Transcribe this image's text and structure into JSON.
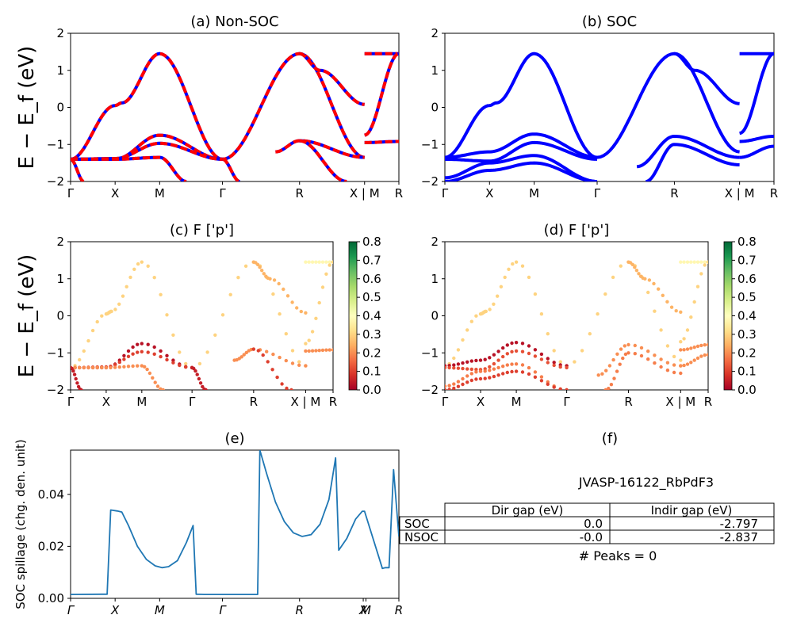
{
  "chart_data": [
    {
      "id": "a",
      "type": "line",
      "title": "(a) Non-SOC",
      "ylabel": "E − E_f (eV)",
      "xlabel": "",
      "ylim": [
        -2,
        2
      ],
      "yticks": [
        "−2",
        "−1",
        "0",
        "1",
        "2"
      ],
      "kpoint_labels": [
        "Γ",
        "X",
        "M",
        "Γ",
        "R",
        "X | M",
        "R"
      ],
      "kpoint_positions": [
        0,
        1,
        2,
        3.41,
        5.14,
        6.6,
        7.37
      ],
      "colors": {
        "dashed_red": "#ff0000",
        "solid_blue": "#0000ff"
      },
      "series": [
        {
          "x": [
            0,
            1,
            1.15,
            2,
            3.41,
            5.14,
            6.6
          ],
          "y": [
            -1.4,
            0.05,
            0.12,
            1.45,
            -1.4,
            1.45,
            -1.35
          ]
        },
        {
          "x": [
            0,
            1,
            2,
            3.41
          ],
          "y": [
            -1.4,
            -1.4,
            -0.75,
            -1.4
          ]
        },
        {
          "x": [
            0,
            1,
            2,
            3.41
          ],
          "y": [
            -1.4,
            -1.38,
            -0.97,
            -1.4
          ]
        },
        {
          "x": [
            0,
            1,
            2,
            2.6
          ],
          "y": [
            -1.4,
            -1.4,
            -1.35,
            -2.0
          ]
        },
        {
          "x": [
            0,
            0.3
          ],
          "y": [
            -1.4,
            -2.0
          ]
        },
        {
          "x": [
            3.41,
            3.8
          ],
          "y": [
            -1.4,
            -2.0
          ]
        },
        {
          "x": [
            4.6,
            5.14,
            6.6
          ],
          "y": [
            -1.2,
            -0.9,
            -1.35
          ]
        },
        {
          "x": [
            5.14,
            5.6,
            6.6
          ],
          "y": [
            1.45,
            1.0,
            0.08
          ]
        },
        {
          "x": [
            5.14,
            6.2
          ],
          "y": [
            -0.9,
            -2.0
          ]
        },
        {
          "x": [
            6.6,
            7.37
          ],
          "y": [
            1.45,
            1.45
          ]
        },
        {
          "x": [
            6.6,
            7.37
          ],
          "y": [
            -0.75,
            1.45
          ]
        },
        {
          "x": [
            6.6,
            7.37
          ],
          "y": [
            -0.95,
            -0.92
          ]
        }
      ]
    },
    {
      "id": "b",
      "type": "line",
      "title": "(b) SOC",
      "ylabel": "",
      "xlabel": "",
      "ylim": [
        -2,
        2
      ],
      "yticks": [
        "−2",
        "−1",
        "0",
        "1",
        "2"
      ],
      "kpoint_labels": [
        "Γ",
        "X",
        "M",
        "Γ",
        "R",
        "X | M",
        "R"
      ],
      "kpoint_positions": [
        0,
        1,
        2,
        3.41,
        5.14,
        6.6,
        7.37
      ],
      "colors": {
        "solid_blue": "#0000ff"
      },
      "series": [
        {
          "x": [
            0,
            1,
            1.15,
            2,
            3.41,
            5.14,
            6.6
          ],
          "y": [
            -1.35,
            0.05,
            0.12,
            1.45,
            -1.35,
            1.45,
            -1.2
          ]
        },
        {
          "x": [
            0,
            1,
            2,
            3.41
          ],
          "y": [
            -1.35,
            -1.2,
            -0.72,
            -1.35
          ]
        },
        {
          "x": [
            0,
            1,
            2,
            3.41
          ],
          "y": [
            -1.4,
            -1.45,
            -0.95,
            -1.4
          ]
        },
        {
          "x": [
            0,
            1,
            2,
            3.41
          ],
          "y": [
            -1.9,
            -1.5,
            -1.3,
            -2.0
          ]
        },
        {
          "x": [
            0,
            1,
            2,
            3.41
          ],
          "y": [
            -2.0,
            -1.7,
            -1.5,
            -2.0
          ]
        },
        {
          "x": [
            5.14,
            5.6,
            6.6
          ],
          "y": [
            1.45,
            1.0,
            0.1
          ]
        },
        {
          "x": [
            4.3,
            5.14,
            6.6
          ],
          "y": [
            -1.6,
            -0.78,
            -1.35
          ]
        },
        {
          "x": [
            4.5,
            5.14,
            6.6
          ],
          "y": [
            -2.0,
            -1.0,
            -1.55
          ]
        },
        {
          "x": [
            6.6,
            7.37
          ],
          "y": [
            1.45,
            1.45
          ]
        },
        {
          "x": [
            6.6,
            7.37
          ],
          "y": [
            -0.7,
            1.45
          ]
        },
        {
          "x": [
            6.6,
            7.37
          ],
          "y": [
            -0.92,
            -0.78
          ]
        },
        {
          "x": [
            6.6,
            7.37
          ],
          "y": [
            -1.35,
            -1.05
          ]
        }
      ]
    },
    {
      "id": "c",
      "type": "scatter",
      "title": "(c)  F ['p']",
      "ylabel": "E − E_f (eV)",
      "xlabel": "",
      "ylim": [
        -2,
        2
      ],
      "yticks": [
        "−2",
        "−1",
        "0",
        "1",
        "2"
      ],
      "kpoint_labels": [
        "Γ",
        "X",
        "M",
        "Γ",
        "R",
        "X | M",
        "R"
      ],
      "kpoint_positions": [
        0,
        1,
        2,
        3.41,
        5.14,
        6.6,
        7.37
      ],
      "colorbar": {
        "min": 0.0,
        "max": 0.8,
        "ticks": [
          "0.0",
          "0.1",
          "0.2",
          "0.3",
          "0.4",
          "0.5",
          "0.6",
          "0.7",
          "0.8"
        ],
        "colormap": "RdYlGn"
      },
      "series": [
        {
          "x": [
            0,
            1,
            1.15,
            2,
            3.41,
            5.14,
            6.6
          ],
          "y": [
            -1.4,
            0.05,
            0.12,
            1.45,
            -1.4,
            1.45,
            -1.35
          ],
          "c": 0.3
        },
        {
          "x": [
            0,
            1,
            2,
            3.41
          ],
          "y": [
            -1.4,
            -1.4,
            -0.75,
            -1.4
          ],
          "c": 0.03
        },
        {
          "x": [
            0,
            1,
            2,
            3.41
          ],
          "y": [
            -1.4,
            -1.38,
            -0.97,
            -1.4
          ],
          "c": 0.1
        },
        {
          "x": [
            0,
            1,
            2,
            2.6
          ],
          "y": [
            -1.4,
            -1.4,
            -1.35,
            -2.0
          ],
          "c": 0.2
        },
        {
          "x": [
            0,
            0.3
          ],
          "y": [
            -1.4,
            -2.0
          ],
          "c": 0.05
        },
        {
          "x": [
            3.41,
            3.8
          ],
          "y": [
            -1.4,
            -2.0
          ],
          "c": 0.05
        },
        {
          "x": [
            4.6,
            5.14,
            6.6
          ],
          "y": [
            -1.2,
            -0.9,
            -1.35
          ],
          "c": 0.2
        },
        {
          "x": [
            5.14,
            5.6,
            6.6
          ],
          "y": [
            1.45,
            1.0,
            0.08
          ],
          "c": 0.25
        },
        {
          "x": [
            5.14,
            6.2
          ],
          "y": [
            -0.9,
            -2.0
          ],
          "c": 0.1
        },
        {
          "x": [
            6.6,
            7.37
          ],
          "y": [
            1.45,
            1.45
          ],
          "c": 0.38
        },
        {
          "x": [
            6.6,
            7.37
          ],
          "y": [
            -0.75,
            1.45
          ],
          "c": 0.3
        },
        {
          "x": [
            6.6,
            7.37
          ],
          "y": [
            -0.95,
            -0.92
          ],
          "c": 0.2
        }
      ]
    },
    {
      "id": "d",
      "type": "scatter",
      "title": "(d) F ['p']",
      "ylabel": "",
      "xlabel": "",
      "ylim": [
        -2,
        2
      ],
      "yticks": [
        "−2",
        "−1",
        "0",
        "1",
        "2"
      ],
      "kpoint_labels": [
        "Γ",
        "X",
        "M",
        "Γ",
        "R",
        "X | M",
        "R"
      ],
      "kpoint_positions": [
        0,
        1,
        2,
        3.41,
        5.14,
        6.6,
        7.37
      ],
      "colorbar": {
        "min": 0.0,
        "max": 0.8,
        "ticks": [
          "0.0",
          "0.1",
          "0.2",
          "0.3",
          "0.4",
          "0.5",
          "0.6",
          "0.7",
          "0.8"
        ],
        "colormap": "RdYlGn"
      },
      "series": [
        {
          "x": [
            0,
            1,
            1.15,
            2,
            3.41,
            5.14,
            6.6
          ],
          "y": [
            -1.35,
            0.05,
            0.12,
            1.45,
            -1.35,
            1.45,
            -1.2
          ],
          "c": 0.3
        },
        {
          "x": [
            0,
            1,
            2,
            3.41
          ],
          "y": [
            -1.35,
            -1.2,
            -0.72,
            -1.35
          ],
          "c": 0.03
        },
        {
          "x": [
            0,
            1,
            2,
            3.41
          ],
          "y": [
            -1.4,
            -1.45,
            -0.95,
            -1.4
          ],
          "c": 0.12
        },
        {
          "x": [
            0,
            1,
            2,
            3.41
          ],
          "y": [
            -1.9,
            -1.5,
            -1.3,
            -2.0
          ],
          "c": 0.18
        },
        {
          "x": [
            0,
            1,
            2,
            3.41
          ],
          "y": [
            -2.0,
            -1.7,
            -1.5,
            -2.0
          ],
          "c": 0.1
        },
        {
          "x": [
            5.14,
            5.6,
            6.6
          ],
          "y": [
            1.45,
            1.0,
            0.1
          ],
          "c": 0.25
        },
        {
          "x": [
            4.3,
            5.14,
            6.6
          ],
          "y": [
            -1.6,
            -0.78,
            -1.35
          ],
          "c": 0.2
        },
        {
          "x": [
            4.5,
            5.14,
            6.6
          ],
          "y": [
            -2.0,
            -1.0,
            -1.55
          ],
          "c": 0.18
        },
        {
          "x": [
            6.6,
            7.37
          ],
          "y": [
            1.45,
            1.45
          ],
          "c": 0.38
        },
        {
          "x": [
            6.6,
            7.37
          ],
          "y": [
            -0.7,
            1.45
          ],
          "c": 0.3
        },
        {
          "x": [
            6.6,
            7.37
          ],
          "y": [
            -0.92,
            -0.78
          ],
          "c": 0.2
        },
        {
          "x": [
            6.6,
            7.37
          ],
          "y": [
            -1.35,
            -1.05
          ],
          "c": 0.2
        }
      ]
    },
    {
      "id": "e",
      "type": "line",
      "title": "(e)",
      "ylabel": "SOC spillage (chg. den. unit)",
      "xlabel": "",
      "ylim": [
        0,
        0.057
      ],
      "yticks": [
        0.0,
        0.02,
        0.04
      ],
      "ytick_labels": [
        "0.00",
        "0.02",
        "0.04"
      ],
      "kpoint_labels": [
        "Γ",
        "X",
        "M",
        "Γ",
        "R",
        "X",
        "M",
        "R"
      ],
      "kpoint_positions": [
        0,
        1,
        2,
        3.41,
        5.14,
        6.57,
        6.63,
        7.37
      ],
      "color": "#1f77b4",
      "series": [
        {
          "name": "",
          "x": [
            0,
            0.75,
            0.82,
            0.9,
            1.05,
            1.15,
            1.3,
            1.5,
            1.7,
            1.9,
            2.05,
            2.2,
            2.4,
            2.6,
            2.75,
            2.82,
            3.0,
            3.41,
            4.0,
            4.2,
            4.25,
            4.4,
            4.6,
            4.8,
            5.0,
            5.2,
            5.4,
            5.6,
            5.8,
            5.95,
            6.02,
            6.2,
            6.4,
            6.55,
            6.6,
            7.0,
            7.07,
            7.15,
            7.25,
            7.37
          ],
          "y": [
            0.0015,
            0.0016,
            0.0016,
            0.034,
            0.0336,
            0.0332,
            0.028,
            0.02,
            0.015,
            0.0125,
            0.0118,
            0.0122,
            0.0145,
            0.0215,
            0.028,
            0.0016,
            0.0015,
            0.0015,
            0.0015,
            0.0015,
            0.057,
            0.048,
            0.037,
            0.0295,
            0.0252,
            0.0238,
            0.0245,
            0.0285,
            0.038,
            0.054,
            0.0185,
            0.023,
            0.0305,
            0.0335,
            0.0335,
            0.0115,
            0.0118,
            0.0118,
            0.0495,
            0.0238
          ]
        }
      ]
    }
  ],
  "panel_f": {
    "title": "(f)",
    "material": "JVASP-16122_RbPdF3",
    "table": {
      "col_labels": [
        "Dir gap (eV)",
        "Indir gap (eV)"
      ],
      "rows": [
        {
          "label": "SOC",
          "cells": [
            "0.0",
            "-2.797"
          ]
        },
        {
          "label": "NSOC",
          "cells": [
            "-0.0",
            "-2.837"
          ]
        }
      ]
    },
    "peaks": "# Peaks = 0"
  }
}
